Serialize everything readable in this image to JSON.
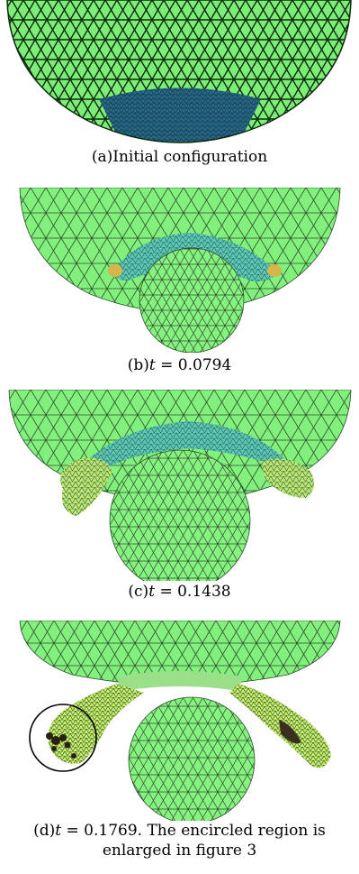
{
  "figure": {
    "panels": [
      {
        "label": "(a)",
        "caption": "Initial configuration",
        "t_value": ""
      },
      {
        "label": "(b)",
        "caption": "",
        "t_value": "0.0794"
      },
      {
        "label": "(c)",
        "caption": "",
        "t_value": "0.1438"
      },
      {
        "label": "(d)",
        "caption": ". The encircled region is",
        "t_value": "0.1769",
        "caption_line2": "enlarged in figure 3"
      }
    ],
    "t_symbol": "t",
    "equals": " = "
  },
  "colors": {
    "mesh_fill": "#80f07a",
    "mesh_line": "#1a3a1a",
    "dense_mesh": "#1b5a8c",
    "highlight": "#d8e85a",
    "ring": "#000000"
  }
}
